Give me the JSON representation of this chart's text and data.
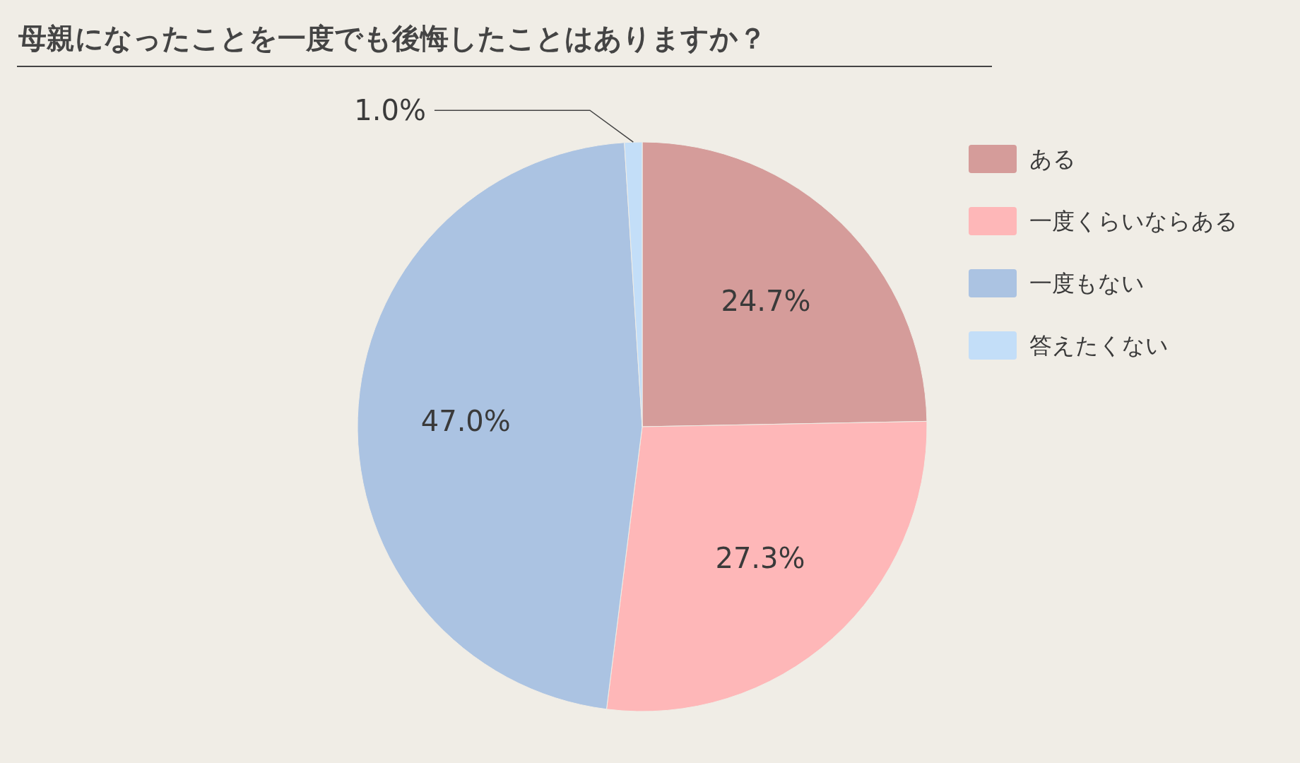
{
  "chart_data": {
    "type": "pie",
    "title": "母親になったことを一度でも後悔したことはありますか？",
    "categories": [
      "ある",
      "一度くらいならある",
      "一度もない",
      "答えたくない"
    ],
    "values": [
      24.7,
      27.3,
      47.0,
      1.0
    ],
    "colors": [
      "#d59c9a",
      "#feb7b8",
      "#abc3e2",
      "#c3def8"
    ],
    "value_labels": [
      "24.7%",
      "27.3%",
      "47.0%",
      "1.0%"
    ],
    "legend": "right"
  }
}
